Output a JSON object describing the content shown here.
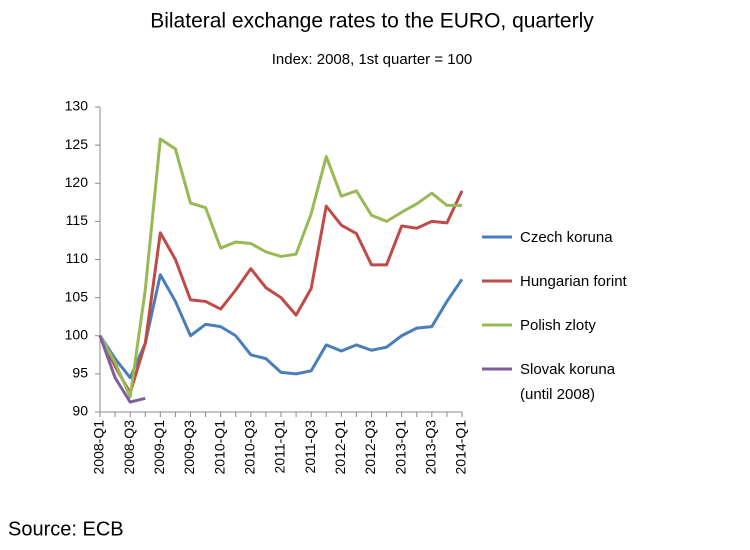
{
  "chart_data": {
    "type": "line",
    "title": "Bilateral exchange rates to the EURO, quarterly",
    "subtitle": "Index: 2008, 1st quarter = 100",
    "source": "Source: ECB",
    "categories": [
      "2008-Q1",
      null,
      "2008-Q3",
      null,
      "2009-Q1",
      null,
      "2009-Q3",
      null,
      "2010-Q1",
      null,
      "2010-Q3",
      null,
      "2011-Q1",
      null,
      "2011-Q3",
      null,
      "2012-Q1",
      null,
      "2012-Q3",
      null,
      "2013-Q1",
      null,
      "2013-Q3",
      null,
      "2014-Q1"
    ],
    "series": [
      {
        "name": "Czech koruna",
        "color": "#4a7ebb",
        "values": [
          100,
          97,
          94.5,
          99,
          108,
          104.5,
          100,
          101.5,
          101.2,
          100,
          97.5,
          97,
          95.2,
          95,
          95.4,
          98.8,
          98,
          98.8,
          98.1,
          98.5,
          100,
          101,
          101.2,
          104.5,
          107.4
        ]
      },
      {
        "name": "Hungarian forint",
        "color": "#be4b48",
        "values": [
          100,
          96,
          92.5,
          99,
          113.5,
          110,
          104.7,
          104.5,
          103.5,
          106,
          108.8,
          106.3,
          105,
          102.7,
          106.2,
          117,
          114.5,
          113.4,
          109.3,
          109.3,
          114.4,
          114.1,
          115,
          114.8,
          119
        ]
      },
      {
        "name": "Polish zloty",
        "color": "#98b954",
        "values": [
          100,
          96.5,
          92,
          106,
          125.8,
          124.5,
          117.4,
          116.8,
          111.5,
          112.3,
          112.1,
          111,
          110.4,
          110.7,
          116,
          123.5,
          118.3,
          119,
          115.8,
          115,
          116.2,
          117.3,
          118.7,
          117.1,
          117.1
        ]
      },
      {
        "name": "Slovak koruna\n(until 2008)",
        "color": "#7d5fa0",
        "values": [
          100,
          94.5,
          91.3,
          91.8,
          null,
          null,
          null,
          null,
          null,
          null,
          null,
          null,
          null,
          null,
          null,
          null,
          null,
          null,
          null,
          null,
          null,
          null,
          null,
          null,
          null
        ]
      }
    ],
    "ylim": [
      90,
      130
    ],
    "yticks": [
      90,
      95,
      100,
      105,
      110,
      115,
      120,
      125,
      130
    ]
  }
}
